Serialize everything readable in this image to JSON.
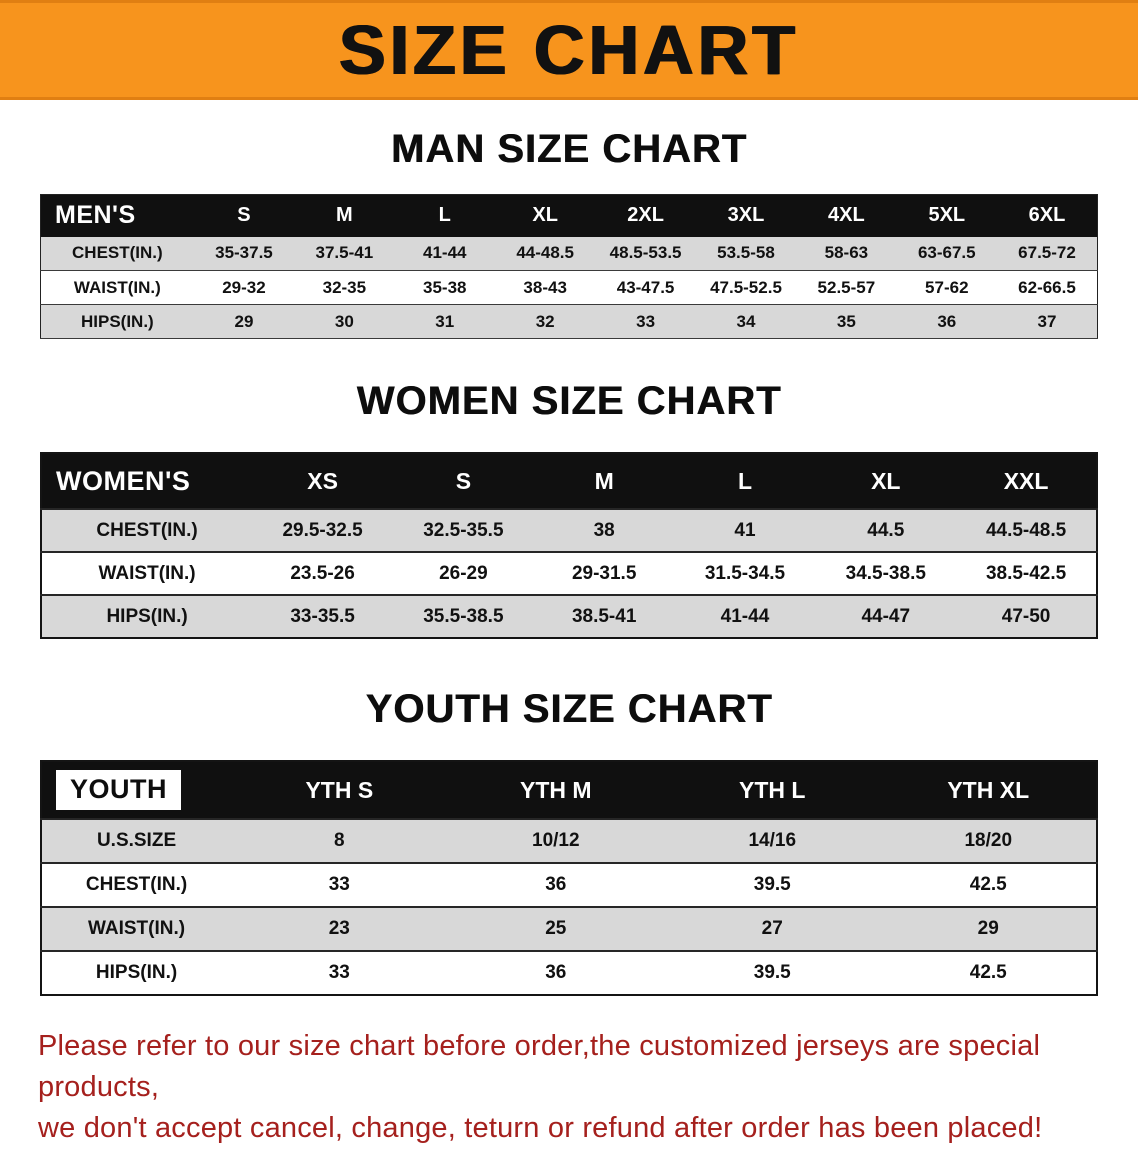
{
  "banner": {
    "title": "SIZE CHART"
  },
  "colors": {
    "banner_bg": "#F7941D",
    "banner_text": "#111111",
    "header_bg": "#101010",
    "header_text": "#FFFFFF",
    "row_stripe": "#D8D8D8",
    "disclaimer_text": "#A5201D"
  },
  "sections": [
    {
      "id": "men",
      "heading": "MAN SIZE CHART",
      "table": {
        "header": [
          "MEN'S",
          "S",
          "M",
          "L",
          "XL",
          "2XL",
          "3XL",
          "4XL",
          "5XL",
          "6XL"
        ],
        "rows": [
          [
            "CHEST(IN.)",
            "35-37.5",
            "37.5-41",
            "41-44",
            "44-48.5",
            "48.5-53.5",
            "53.5-58",
            "58-63",
            "63-67.5",
            "67.5-72"
          ],
          [
            "WAIST(IN.)",
            "29-32",
            "32-35",
            "35-38",
            "38-43",
            "43-47.5",
            "47.5-52.5",
            "52.5-57",
            "57-62",
            "62-66.5"
          ],
          [
            "HIPS(IN.)",
            "29",
            "30",
            "31",
            "32",
            "33",
            "34",
            "35",
            "36",
            "37"
          ]
        ]
      }
    },
    {
      "id": "women",
      "heading": "WOMEN SIZE CHART",
      "table": {
        "header": [
          "WOMEN'S",
          "XS",
          "S",
          "M",
          "L",
          "XL",
          "XXL"
        ],
        "rows": [
          [
            "CHEST(IN.)",
            "29.5-32.5",
            "32.5-35.5",
            "38",
            "41",
            "44.5",
            "44.5-48.5"
          ],
          [
            "WAIST(IN.)",
            "23.5-26",
            "26-29",
            "29-31.5",
            "31.5-34.5",
            "34.5-38.5",
            "38.5-42.5"
          ],
          [
            "HIPS(IN.)",
            "33-35.5",
            "35.5-38.5",
            "38.5-41",
            "41-44",
            "44-47",
            "47-50"
          ]
        ]
      }
    },
    {
      "id": "youth",
      "heading": "YOUTH SIZE CHART",
      "table": {
        "header": [
          "YOUTH",
          "YTH S",
          "YTH M",
          "YTH L",
          "YTH XL"
        ],
        "rows": [
          [
            "U.S.SIZE",
            "8",
            "10/12",
            "14/16",
            "18/20"
          ],
          [
            "CHEST(IN.)",
            "33",
            "36",
            "39.5",
            "42.5"
          ],
          [
            "WAIST(IN.)",
            "23",
            "25",
            "27",
            "29"
          ],
          [
            "HIPS(IN.)",
            "33",
            "36",
            "39.5",
            "42.5"
          ]
        ]
      }
    }
  ],
  "disclaimer": {
    "line1": "Please refer to our size chart before order,the customized jerseys are special products,",
    "line2": "we don't accept cancel, change, teturn or refund after order has been placed!"
  }
}
